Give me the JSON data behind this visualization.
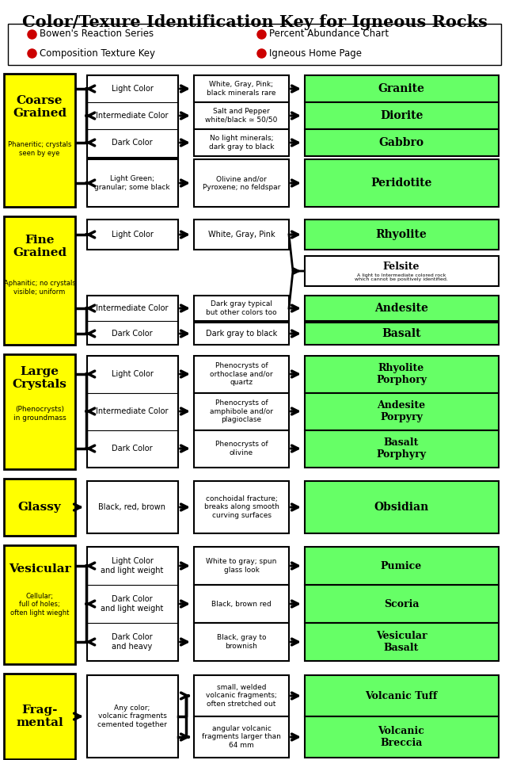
{
  "title": "Color/Texure Identification Key for Igneous Rocks",
  "yellow": "#FFFF00",
  "green": "#66FF66",
  "white": "#FFFFFF",
  "black": "#000000",
  "red_dot": "#CC0000",
  "fig_w": 6.43,
  "fig_h": 9.59,
  "dpi": 100,
  "legend_items_left": [
    "Bowen's Reaction Series",
    "Composition Texture Key"
  ],
  "legend_items_right": [
    "Percent Abundance Chart",
    "Igneous Home Page"
  ],
  "sections": [
    {
      "name": "Coarse\nGrained",
      "sub": "Phaneritic; crystals\nseen by eye",
      "main_rows": [
        [
          "Light Color",
          "White, Gray, Pink;\nblack minerals rare",
          "Granite"
        ],
        [
          "Intermediate Color",
          "Salt and Pepper\nwhite/black ≃ 50/50",
          "Diorite"
        ],
        [
          "Dark Color",
          "No light minerals;\ndark gray to black",
          "Gabbro"
        ]
      ],
      "extra_rows": [
        [
          "Light Green;\ngranular; some black",
          "Olivine and/or\nPyroxene; no feldspar",
          "Peridotite"
        ]
      ],
      "has_felsite": false
    },
    {
      "name": "Fine\nGrained",
      "sub": "Aphanitic; no crystals\nvisible; uniform",
      "main_rows": [
        [
          "Light Color",
          "White, Gray, Pink",
          "Rhyolite"
        ]
      ],
      "extra_rows": [
        [
          "Intermediate Color",
          "Dark gray typical\nbut other colors too",
          "Andesite"
        ],
        [
          "Dark Color",
          "Dark gray to black",
          "Basalt"
        ]
      ],
      "has_felsite": true,
      "felsite_note": "A light to Intermediate colored rock\nwhich cannot be positively identified."
    },
    {
      "name": "Large\nCrystals",
      "sub": "(Phenocrysts)\nin groundmass",
      "main_rows": [
        [
          "Light Color",
          "Phenocrysts of\northoclase and/or\nquartz",
          "Rhyolite\nPorphory"
        ],
        [
          "Intermediate Color",
          "Phenocrysts of\namphibole and/or\nplagioclase",
          "Andesite\nPorpyry"
        ],
        [
          "Dark Color",
          "Phenocrysts of\nolivine",
          "Basalt\nPorphyry"
        ]
      ],
      "extra_rows": [],
      "has_felsite": false
    },
    {
      "name": "Glassy",
      "sub": "",
      "main_rows": [
        [
          "Black, red, brown",
          "conchoidal fracture;\nbreaks along smooth\ncurving surfaces",
          "Obsidian"
        ]
      ],
      "extra_rows": [],
      "has_felsite": false
    },
    {
      "name": "Vesicular",
      "sub": "Cellular;\nfull of holes;\noften light wieght",
      "main_rows": [
        [
          "Light Color\nand light weight",
          "White to gray; spun\nglass look",
          "Pumice"
        ],
        [
          "Dark Color\nand light weight",
          "Black, brown red",
          "Scoria"
        ],
        [
          "Dark Color\nand heavy",
          "Black, gray to\nbrownish",
          "Vesicular\nBasalt"
        ]
      ],
      "extra_rows": [],
      "has_felsite": false
    },
    {
      "name": "Frag-\nmental",
      "sub": "",
      "col2_text": "Any color;\nvolcanic fragments\ncemented together",
      "main_rows": [
        [
          "",
          "small, welded\nvolcanic fragments;\noften stretched out",
          "Volcanic Tuff"
        ],
        [
          "",
          "angular volcanic\nfragments larger than\n64 mm",
          "Volcanic\nBreccia"
        ]
      ],
      "extra_rows": [],
      "has_felsite": false
    }
  ]
}
